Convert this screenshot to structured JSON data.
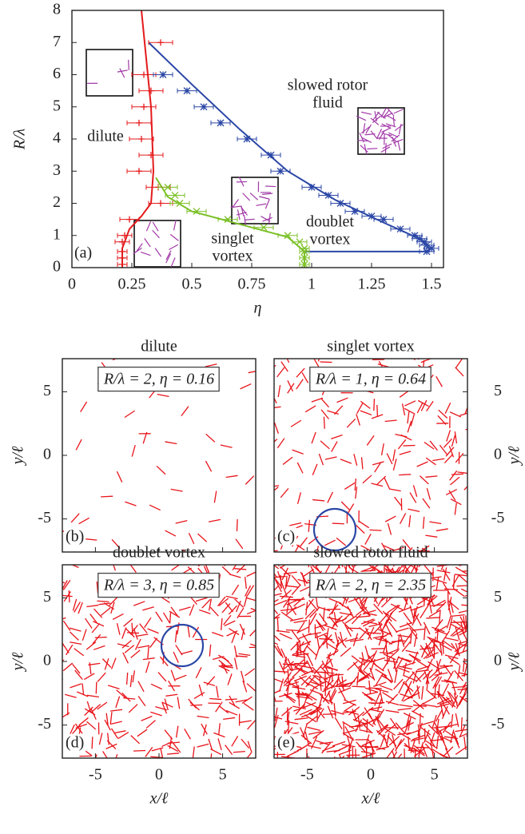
{
  "chart_data": [
    {
      "type": "line",
      "panel_label": "(a)",
      "xlabel": "η",
      "ylabel": "R/λ",
      "xlim": [
        0,
        1.55
      ],
      "ylim": [
        0,
        8
      ],
      "xticks": [
        0,
        0.25,
        0.5,
        0.75,
        1,
        1.25,
        1.5
      ],
      "yticks": [
        0,
        1,
        2,
        3,
        4,
        5,
        6,
        7,
        8
      ],
      "annotations": [
        "dilute",
        "slowed rotor",
        "fluid",
        "singlet",
        "vortex",
        "doublet",
        "vortex"
      ],
      "series": [
        {
          "color": "#e41a1c",
          "marker": "+",
          "x": [
            0.37,
            0.3,
            0.33,
            0.3,
            0.28,
            0.29,
            0.33,
            0.28,
            0.36,
            0.37,
            0.24,
            0.22,
            0.21,
            0.21,
            0.21,
            0.21
          ],
          "y": [
            7.0,
            6.0,
            5.5,
            5.0,
            4.5,
            4.0,
            3.5,
            3.0,
            2.5,
            2.0,
            1.5,
            1.0,
            0.8,
            0.5,
            0.3,
            0.1
          ],
          "xerr": [
            0.05,
            0.05,
            0.05,
            0.05,
            0.05,
            0.05,
            0.05,
            0.05,
            0.05,
            0.05,
            0.04,
            0.03,
            0.03,
            0.02,
            0.02,
            0.02
          ]
        },
        {
          "color": "#7cc128",
          "marker": "x",
          "x": [
            0.4,
            0.43,
            0.45,
            0.52,
            0.65,
            0.8,
            0.9,
            0.95,
            0.97,
            0.97,
            0.97,
            0.97
          ],
          "y": [
            2.5,
            2.25,
            2.0,
            1.75,
            1.5,
            1.25,
            1.0,
            0.8,
            0.6,
            0.5,
            0.3,
            0.1
          ],
          "xerr": [
            0.04,
            0.04,
            0.04,
            0.04,
            0.04,
            0.04,
            0.04,
            0.03,
            0.02,
            0.02,
            0.02,
            0.02
          ]
        },
        {
          "color": "#2b47a6",
          "marker": "*",
          "x": [
            0.38,
            0.48,
            0.55,
            0.62,
            0.73,
            0.83,
            0.87,
            1.0,
            1.07,
            1.12,
            1.18,
            1.25,
            1.3,
            1.37,
            1.43,
            1.45,
            1.47,
            1.48,
            1.5,
            1.48
          ],
          "y": [
            6.0,
            5.5,
            5.0,
            4.5,
            4.0,
            3.5,
            3.0,
            2.5,
            2.25,
            2.0,
            1.75,
            1.6,
            1.5,
            1.2,
            1.0,
            0.9,
            0.8,
            0.7,
            0.6,
            0.5
          ],
          "xerr": [
            0.04,
            0.04,
            0.04,
            0.04,
            0.04,
            0.04,
            0.04,
            0.04,
            0.04,
            0.04,
            0.04,
            0.04,
            0.04,
            0.04,
            0.03,
            0.03,
            0.03,
            0.03,
            0.03,
            0.03
          ]
        }
      ],
      "curves": [
        {
          "color": "#e41a1c",
          "x": [
            0.29,
            0.31,
            0.33,
            0.34,
            0.33,
            0.29,
            0.24,
            0.21,
            0.21
          ],
          "y": [
            8,
            6.5,
            5,
            3,
            2,
            1.6,
            1.2,
            0.6,
            0
          ]
        },
        {
          "color": "#7cc128",
          "x": [
            0.35,
            0.4,
            0.5,
            0.7,
            0.9,
            0.97,
            0.97
          ],
          "y": [
            2.8,
            2.2,
            1.75,
            1.35,
            0.95,
            0.5,
            0
          ]
        },
        {
          "color": "#2b47a6",
          "x": [
            0.32,
            0.5,
            0.7,
            0.9,
            1.1,
            1.3,
            1.45,
            1.49,
            1.49,
            0.97
          ],
          "y": [
            7,
            5.7,
            4.3,
            3.0,
            2.1,
            1.4,
            0.9,
            0.6,
            0.5,
            0.5
          ]
        }
      ]
    },
    {
      "type": "snapshot",
      "title": "dilute",
      "annotation": "R/λ = 2, η = 0.16",
      "panel_label": "(b)",
      "ylabel": "y/ℓ",
      "xlim": [
        -7.6,
        7.6
      ],
      "ylim": [
        -7.6,
        7.6
      ],
      "xticks": [
        -5,
        0,
        5
      ],
      "yticks": [
        -5,
        0,
        5
      ],
      "rod_color": "#e8141a"
    },
    {
      "type": "snapshot",
      "title": "singlet vortex",
      "annotation": "R/λ = 1, η = 0.64",
      "panel_label": "(c)",
      "ylabel": "y/ℓ",
      "xlim": [
        -7.6,
        7.6
      ],
      "ylim": [
        -7.6,
        7.6
      ],
      "xticks": [
        -5,
        0,
        5
      ],
      "yticks": [
        -5,
        0,
        5
      ],
      "rod_color": "#e8141a"
    },
    {
      "type": "snapshot",
      "title": "doublet vortex",
      "annotation": "R/λ = 3, η = 0.85",
      "panel_label": "(d)",
      "xlabel": "x/ℓ",
      "ylabel": "y/ℓ",
      "xlim": [
        -7.6,
        7.6
      ],
      "ylim": [
        -7.6,
        7.6
      ],
      "xticks": [
        -5,
        0,
        5
      ],
      "yticks": [
        -5,
        0,
        5
      ],
      "rod_color": "#e8141a"
    },
    {
      "type": "snapshot",
      "title": "slowed rotor fluid",
      "annotation": "R/λ = 2, η = 2.35",
      "panel_label": "(e)",
      "xlabel": "x/ℓ",
      "ylabel": "y/ℓ",
      "xlim": [
        -7.6,
        7.6
      ],
      "ylim": [
        -7.6,
        7.6
      ],
      "xticks": [
        -5,
        0,
        5
      ],
      "yticks": [
        -5,
        0,
        5
      ],
      "rod_color": "#e8141a"
    }
  ]
}
